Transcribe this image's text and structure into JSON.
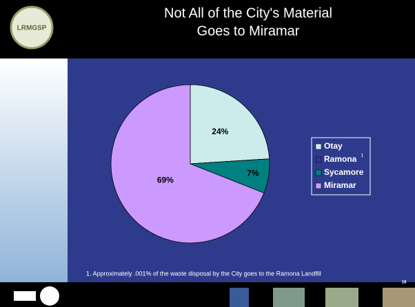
{
  "logo_text": "LRMGSP",
  "chart_data": {
    "type": "pie",
    "title_lines": [
      "Not All of the City's Material",
      "Goes to Miramar"
    ],
    "categories": [
      "Otay",
      "Ramona",
      "Sycamore",
      "Miramar"
    ],
    "values": [
      24,
      0.001,
      7,
      69
    ],
    "value_labels": [
      "24%",
      null,
      "7%",
      "69%"
    ],
    "colors": [
      "#ccecec",
      "#333399",
      "#008080",
      "#cc99ff"
    ],
    "legend_superscript": {
      "category": 1,
      "text": "1"
    },
    "legend": "right",
    "footnote": "1. Approximately .001% of the waste disposal by the City goes to the Ramona Landfill",
    "page_number": "18"
  }
}
